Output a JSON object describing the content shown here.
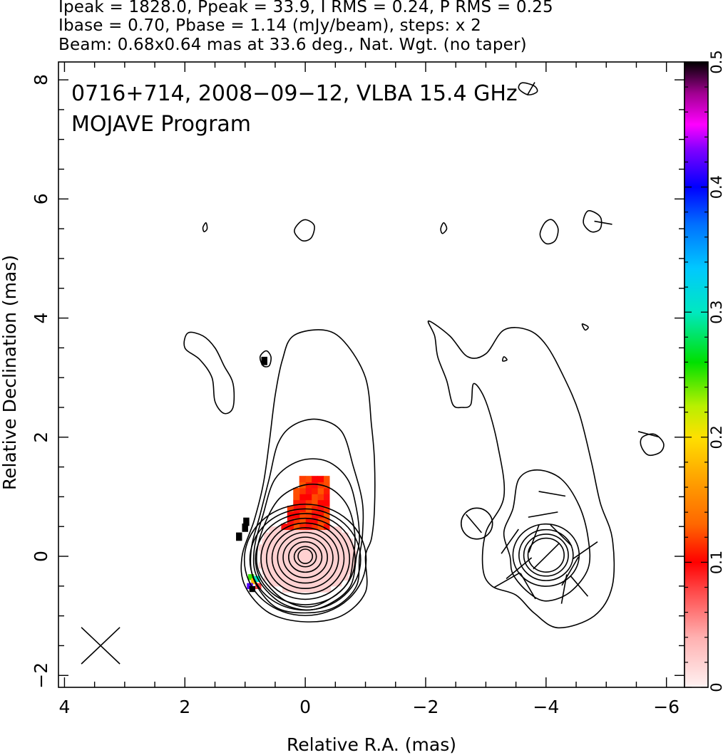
{
  "header": {
    "line1": "Ipeak = 1828.0, Ppeak = 33.9, I RMS = 0.24, P RMS = 0.25",
    "line2": "Ibase = 0.70, Pbase = 1.14 (mJy/beam), steps: x 2",
    "line3": "Beam: 0.68x0.64 mas at 33.6 deg., Nat. Wgt. (no taper)"
  },
  "chart_data": {
    "type": "heatmap",
    "title": "0716+714, 2008−09−12, VLBA 15.4 GHz",
    "subtitle": "MOJAVE Program",
    "xlabel": "Relative R.A. (mas)",
    "ylabel": "Relative Declination (mas)",
    "xlim": [
      4.1,
      -6.3
    ],
    "ylim": [
      -2.2,
      8.3
    ],
    "x_ticks": [
      4,
      2,
      0,
      -2,
      -4,
      -6
    ],
    "x_tick_labels": [
      "4",
      "2",
      "0",
      "−2",
      "−4",
      "−6"
    ],
    "y_ticks": [
      -2,
      0,
      2,
      4,
      6,
      8
    ],
    "y_tick_labels": [
      "−2",
      "0",
      "2",
      "4",
      "6",
      "8"
    ],
    "colorbar": {
      "min": 0,
      "max": 0.5,
      "ticks": [
        0,
        0.1,
        0.2,
        0.3,
        0.4,
        0.5
      ],
      "tick_labels": [
        "0",
        "0.1",
        "0.2",
        "0.3",
        "0.4",
        "0.5"
      ]
    },
    "beam": {
      "major_mas": 0.68,
      "minor_mas": 0.64,
      "pa_deg": 33.6,
      "center": [
        3.4,
        -1.5
      ]
    },
    "core": {
      "x": 0,
      "y": 0
    },
    "contour_levels_mjy": [
      0.7,
      1.4,
      2.8,
      5.6,
      11.2,
      22.4,
      44.8,
      89.6,
      179.2,
      358.4,
      716.8,
      1433.6
    ],
    "contour_radii_mas": [
      1.1,
      1.0,
      0.9,
      0.8,
      0.7,
      0.6,
      0.5,
      0.4,
      0.3,
      0.2
    ],
    "jet_outer_contour": [
      [
        -1.0,
        0.0
      ],
      [
        -1.0,
        -0.6
      ],
      [
        -0.6,
        -1.0
      ],
      [
        0.0,
        -1.1
      ],
      [
        0.6,
        -0.95
      ],
      [
        1.0,
        -0.5
      ],
      [
        1.05,
        0.0
      ],
      [
        0.85,
        0.6
      ],
      [
        0.7,
        1.2
      ],
      [
        0.6,
        1.9
      ],
      [
        0.5,
        2.7
      ],
      [
        0.38,
        3.3
      ],
      [
        0.2,
        3.7
      ],
      [
        -0.3,
        3.8
      ],
      [
        -0.65,
        3.6
      ],
      [
        -1.0,
        3.0
      ],
      [
        -1.1,
        2.2
      ],
      [
        -1.15,
        1.6
      ],
      [
        -1.15,
        0.8
      ],
      [
        -1.1,
        0.3
      ]
    ],
    "jet_contour_2": [
      [
        -0.9,
        0.0
      ],
      [
        -0.85,
        -0.5
      ],
      [
        -0.5,
        -0.85
      ],
      [
        0.0,
        -0.95
      ],
      [
        0.5,
        -0.85
      ],
      [
        0.85,
        -0.4
      ],
      [
        0.9,
        0.1
      ],
      [
        0.75,
        0.7
      ],
      [
        0.6,
        1.3
      ],
      [
        0.45,
        1.9
      ],
      [
        0.2,
        2.2
      ],
      [
        -0.2,
        2.3
      ],
      [
        -0.6,
        2.1
      ],
      [
        -0.8,
        1.5
      ],
      [
        -0.95,
        0.9
      ],
      [
        -0.95,
        0.35
      ]
    ],
    "jet_contour_3": [
      [
        -0.85,
        0.0
      ],
      [
        -0.75,
        -0.5
      ],
      [
        -0.4,
        -0.8
      ],
      [
        0.0,
        -0.9
      ],
      [
        0.45,
        -0.75
      ],
      [
        0.8,
        -0.35
      ],
      [
        0.85,
        0.1
      ],
      [
        0.7,
        0.7
      ],
      [
        0.5,
        1.3
      ],
      [
        0.1,
        1.6
      ],
      [
        -0.35,
        1.6
      ],
      [
        -0.7,
        1.3
      ],
      [
        -0.85,
        0.8
      ],
      [
        -0.9,
        0.3
      ]
    ],
    "jet_contour_4": [
      [
        -0.8,
        0.0
      ],
      [
        -0.7,
        -0.45
      ],
      [
        -0.35,
        -0.75
      ],
      [
        0.0,
        -0.85
      ],
      [
        0.4,
        -0.7
      ],
      [
        0.75,
        -0.3
      ],
      [
        0.8,
        0.1
      ],
      [
        0.65,
        0.6
      ],
      [
        0.4,
        1.0
      ],
      [
        0.0,
        1.2
      ],
      [
        -0.4,
        1.15
      ],
      [
        -0.7,
        0.85
      ],
      [
        -0.82,
        0.4
      ]
    ],
    "east_lobe": [
      [
        1.7,
        3.7
      ],
      [
        1.95,
        3.75
      ],
      [
        2.0,
        3.5
      ],
      [
        1.75,
        3.3
      ],
      [
        1.55,
        3.0
      ],
      [
        1.5,
        2.6
      ],
      [
        1.35,
        2.4
      ],
      [
        1.2,
        2.5
      ],
      [
        1.2,
        2.9
      ],
      [
        1.35,
        3.2
      ],
      [
        1.5,
        3.5
      ]
    ],
    "noise_islands": [
      {
        "points": [
          [
            0.1,
            5.6
          ],
          [
            0.18,
            5.45
          ],
          [
            0.05,
            5.3
          ],
          [
            -0.1,
            5.35
          ],
          [
            -0.15,
            5.55
          ],
          [
            -0.02,
            5.65
          ]
        ]
      },
      {
        "points": [
          [
            0.65,
            3.45
          ],
          [
            0.75,
            3.35
          ],
          [
            0.7,
            3.2
          ],
          [
            0.6,
            3.2
          ],
          [
            0.57,
            3.35
          ]
        ]
      },
      {
        "points": [
          [
            1.65,
            5.6
          ],
          [
            1.7,
            5.52
          ],
          [
            1.68,
            5.45
          ],
          [
            1.63,
            5.5
          ]
        ]
      }
    ],
    "fracpol_main": {
      "x_range": [
        -0.85,
        0.85
      ],
      "y_range": [
        -0.55,
        0.5
      ],
      "value": 0.02
    },
    "fracpol_upper": {
      "x_range": [
        -0.4,
        0.3
      ],
      "y_range": [
        0.5,
        1.35
      ],
      "value": 0.11
    },
    "fracpol_black_pixels": [
      [
        1.1,
        0.35
      ],
      [
        1.0,
        0.5
      ],
      [
        0.98,
        0.6
      ],
      [
        0.68,
        3.3
      ]
    ],
    "fracpol_edge_pixels": [
      {
        "x": 0.9,
        "y": -0.35,
        "value": 0.25
      },
      {
        "x": 0.85,
        "y": -0.42,
        "value": 0.18
      },
      {
        "x": 0.78,
        "y": -0.5,
        "value": 0.08
      },
      {
        "x": 0.92,
        "y": -0.5,
        "value": 0.42
      },
      {
        "x": 0.88,
        "y": -0.55,
        "value": 0.5
      },
      {
        "x": 0.8,
        "y": -0.38,
        "value": 0.3
      }
    ],
    "pol_panel_offset_x": -4.0,
    "pol_outer_contour": [
      [
        -2.05,
        3.95
      ],
      [
        -2.15,
        3.7
      ],
      [
        -2.2,
        3.35
      ],
      [
        -2.35,
        2.95
      ],
      [
        -2.45,
        2.55
      ],
      [
        -2.6,
        2.5
      ],
      [
        -2.75,
        2.55
      ],
      [
        -2.8,
        2.9
      ],
      [
        -3.0,
        2.6
      ],
      [
        -3.2,
        1.85
      ],
      [
        -3.3,
        1.0
      ],
      [
        -3.0,
        0.4
      ],
      [
        -2.95,
        -0.2
      ],
      [
        -3.1,
        -0.5
      ],
      [
        -3.5,
        -0.65
      ],
      [
        -3.8,
        -0.95
      ],
      [
        -4.2,
        -1.2
      ],
      [
        -4.8,
        -1.0
      ],
      [
        -5.1,
        -0.5
      ],
      [
        -5.1,
        0.3
      ],
      [
        -4.9,
        0.9
      ],
      [
        -4.75,
        1.6
      ],
      [
        -4.55,
        2.4
      ],
      [
        -4.3,
        3.0
      ],
      [
        -4.0,
        3.55
      ],
      [
        -3.7,
        3.8
      ],
      [
        -3.3,
        3.8
      ],
      [
        -3.0,
        3.4
      ],
      [
        -2.7,
        3.35
      ],
      [
        -2.4,
        3.7
      ]
    ],
    "pol_inner_contour": [
      [
        -3.4,
        0.0
      ],
      [
        -3.45,
        -0.3
      ],
      [
        -3.7,
        -0.6
      ],
      [
        -4.0,
        -0.75
      ],
      [
        -4.4,
        -0.6
      ],
      [
        -4.7,
        -0.2
      ],
      [
        -4.7,
        0.3
      ],
      [
        -4.55,
        0.85
      ],
      [
        -4.25,
        1.3
      ],
      [
        -3.85,
        1.45
      ],
      [
        -3.55,
        1.3
      ],
      [
        -3.45,
        0.8
      ],
      [
        -3.3,
        0.4
      ]
    ],
    "pol_contour_radii_mas": [
      0.55,
      0.45,
      0.37,
      0.3
    ],
    "pol_islands": [
      {
        "points": [
          [
            -2.3,
            5.6
          ],
          [
            -2.25,
            5.5
          ],
          [
            -2.28,
            5.42
          ],
          [
            -2.35,
            5.5
          ]
        ]
      },
      {
        "points": [
          [
            -3.98,
            5.6
          ],
          [
            -3.9,
            5.4
          ],
          [
            -4.0,
            5.25
          ],
          [
            -4.15,
            5.3
          ],
          [
            -4.2,
            5.5
          ],
          [
            -4.1,
            5.65
          ]
        ]
      },
      {
        "points": [
          [
            -4.7,
            5.8
          ],
          [
            -4.9,
            5.7
          ],
          [
            -4.9,
            5.5
          ],
          [
            -4.75,
            5.45
          ],
          [
            -4.62,
            5.6
          ]
        ]
      },
      {
        "points": [
          [
            -3.6,
            7.95
          ],
          [
            -3.8,
            7.9
          ],
          [
            -3.85,
            7.8
          ],
          [
            -3.7,
            7.75
          ],
          [
            -3.55,
            7.85
          ]
        ]
      },
      {
        "points": [
          [
            -4.6,
            3.9
          ],
          [
            -4.7,
            3.85
          ],
          [
            -4.65,
            3.8
          ]
        ]
      },
      {
        "points": [
          [
            -5.6,
            2.0
          ],
          [
            -5.8,
            2.05
          ],
          [
            -5.95,
            1.9
          ],
          [
            -5.9,
            1.75
          ],
          [
            -5.7,
            1.7
          ],
          [
            -5.58,
            1.85
          ]
        ]
      },
      {
        "points": [
          [
            -3.3,
            3.35
          ],
          [
            -3.35,
            3.3
          ],
          [
            -3.28,
            3.28
          ]
        ]
      }
    ],
    "pol_left_blob": {
      "x": -2.85,
      "y": 0.55,
      "r": 0.26
    },
    "evpa_vectors": [
      {
        "x": -4.0,
        "y": 0.0,
        "len": 0.6,
        "angle_deg": -45
      },
      {
        "x": -3.8,
        "y": 0.3,
        "len": 0.5,
        "angle_deg": -20
      },
      {
        "x": -4.25,
        "y": 0.35,
        "len": 0.5,
        "angle_deg": 45
      },
      {
        "x": -3.55,
        "y": -0.2,
        "len": 0.55,
        "angle_deg": -50
      },
      {
        "x": -4.4,
        "y": -0.25,
        "len": 0.55,
        "angle_deg": -30
      },
      {
        "x": -3.7,
        "y": -0.5,
        "len": 0.5,
        "angle_deg": 30
      },
      {
        "x": -4.3,
        "y": -0.55,
        "len": 0.5,
        "angle_deg": -10
      },
      {
        "x": -3.4,
        "y": 0.25,
        "len": 0.5,
        "angle_deg": -35
      },
      {
        "x": -4.65,
        "y": 0.1,
        "len": 0.5,
        "angle_deg": -55
      },
      {
        "x": -3.95,
        "y": 0.7,
        "len": 0.5,
        "angle_deg": -80
      },
      {
        "x": -4.1,
        "y": 1.05,
        "len": 0.45,
        "angle_deg": 80
      },
      {
        "x": -3.35,
        "y": -0.4,
        "len": 0.5,
        "angle_deg": -60
      },
      {
        "x": -4.55,
        "y": -0.5,
        "len": 0.45,
        "angle_deg": 40
      },
      {
        "x": -2.8,
        "y": 0.55,
        "len": 0.4,
        "angle_deg": 40
      },
      {
        "x": -4.95,
        "y": 5.6,
        "len": 0.3,
        "angle_deg": 80
      },
      {
        "x": -5.7,
        "y": 2.05,
        "len": 0.35,
        "angle_deg": 75
      },
      {
        "x": -3.75,
        "y": 7.85,
        "len": 0.25,
        "angle_deg": -30
      }
    ]
  }
}
